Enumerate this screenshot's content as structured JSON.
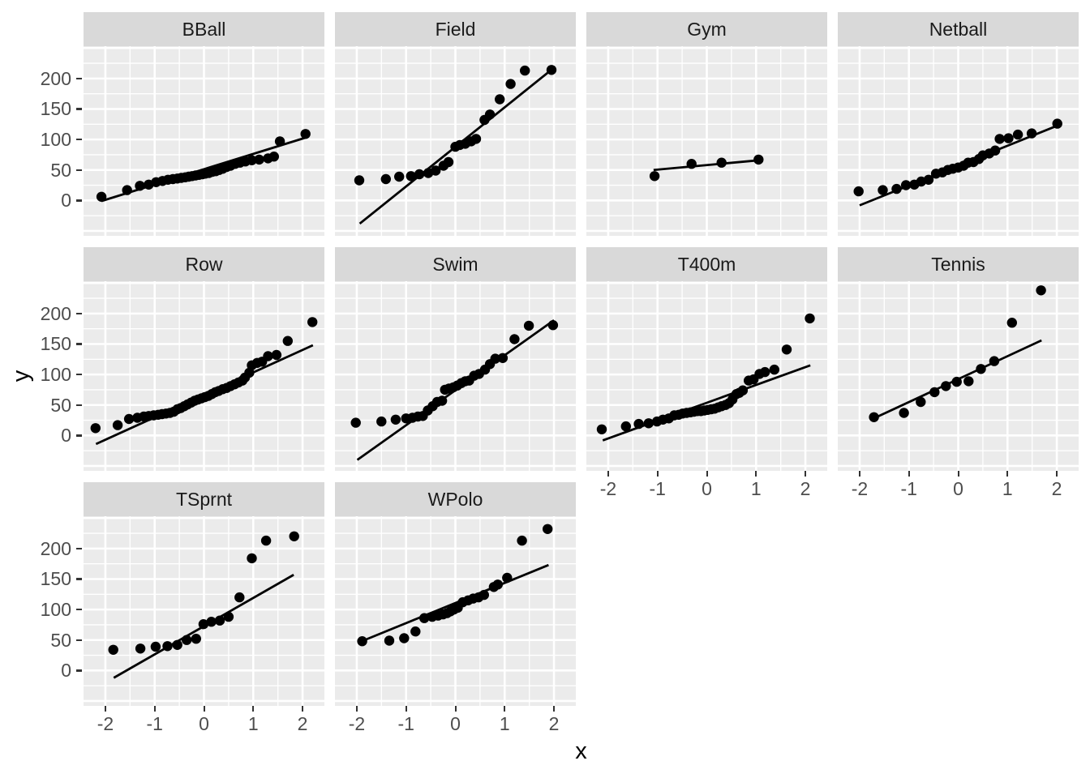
{
  "chart_data": {
    "type": "scatter",
    "description": "Faceted scatter plots (Q-Q style) of y vs x by sport, each with a fitted straight reference line",
    "xlabel": "x",
    "ylabel": "y",
    "x_ticks": [
      -2,
      -1,
      0,
      1,
      2
    ],
    "y_ticks": [
      0,
      50,
      100,
      150,
      200
    ],
    "x_domain": [
      -2.443,
      2.443
    ],
    "y_domain": [
      -58,
      253
    ],
    "x_major_grid": [
      -2,
      -1,
      0,
      1,
      2
    ],
    "x_minor_grid": [
      -1.5,
      -0.5,
      0.5,
      1.5
    ],
    "y_major_grid": [
      -50,
      0,
      50,
      100,
      150,
      200,
      250
    ],
    "y_minor_grid": [
      -25,
      25,
      75,
      125,
      175,
      225
    ],
    "grid": true,
    "legend": false,
    "colors": {
      "background": "#FFFFFF",
      "panel_bg": "#EBEBEB",
      "strip_bg": "#D9D9D9",
      "strip_text": "#1A1A1A",
      "axis_text": "#4D4D4D",
      "tick_mark": "#333333",
      "grid": "#FFFFFF",
      "point": "#000000",
      "fit_line": "#000000"
    },
    "facets": [
      {
        "label": "BBall",
        "bottom_axis": false,
        "line": [
          [
            -2.08,
            -1
          ],
          [
            2.06,
            103
          ]
        ],
        "points": [
          [
            -2.08,
            6
          ],
          [
            -1.56,
            17
          ],
          [
            -1.3,
            24
          ],
          [
            -1.12,
            26
          ],
          [
            -0.97,
            30
          ],
          [
            -0.84,
            32
          ],
          [
            -0.73,
            34
          ],
          [
            -0.63,
            35
          ],
          [
            -0.54,
            36
          ],
          [
            -0.46,
            37
          ],
          [
            -0.38,
            38
          ],
          [
            -0.31,
            39
          ],
          [
            -0.24,
            40
          ],
          [
            -0.17,
            41
          ],
          [
            -0.1,
            42
          ],
          [
            -0.03,
            43
          ],
          [
            0.03,
            44
          ],
          [
            0.1,
            45
          ],
          [
            0.17,
            47
          ],
          [
            0.24,
            48
          ],
          [
            0.31,
            50
          ],
          [
            0.38,
            52
          ],
          [
            0.46,
            55
          ],
          [
            0.54,
            57
          ],
          [
            0.63,
            60
          ],
          [
            0.73,
            62
          ],
          [
            0.84,
            64
          ],
          [
            0.97,
            66
          ],
          [
            1.12,
            67
          ],
          [
            1.3,
            69
          ],
          [
            1.42,
            72
          ],
          [
            1.54,
            97
          ],
          [
            2.06,
            109
          ]
        ]
      },
      {
        "label": "Field",
        "bottom_axis": false,
        "line": [
          [
            -1.94,
            -38
          ],
          [
            1.99,
            217
          ]
        ],
        "points": [
          [
            -1.95,
            33
          ],
          [
            -1.41,
            35
          ],
          [
            -1.14,
            39
          ],
          [
            -0.9,
            40
          ],
          [
            -0.73,
            43
          ],
          [
            -0.55,
            45
          ],
          [
            -0.4,
            49
          ],
          [
            -0.24,
            57
          ],
          [
            -0.14,
            63
          ],
          [
            0.0,
            88
          ],
          [
            0.09,
            91
          ],
          [
            0.2,
            93
          ],
          [
            0.32,
            97
          ],
          [
            0.42,
            101
          ],
          [
            0.59,
            132
          ],
          [
            0.7,
            141
          ],
          [
            0.9,
            166
          ],
          [
            1.12,
            191
          ],
          [
            1.41,
            213
          ],
          [
            1.95,
            214
          ]
        ]
      },
      {
        "label": "Gym",
        "bottom_axis": false,
        "line": [
          [
            -1.08,
            50
          ],
          [
            1.07,
            66
          ]
        ],
        "points": [
          [
            -1.06,
            40
          ],
          [
            -0.31,
            60
          ],
          [
            0.3,
            62
          ],
          [
            1.05,
            67
          ]
        ]
      },
      {
        "label": "Netball",
        "bottom_axis": false,
        "line": [
          [
            -2.0,
            -8
          ],
          [
            2.02,
            123
          ]
        ],
        "points": [
          [
            -2.02,
            15
          ],
          [
            -1.53,
            17
          ],
          [
            -1.25,
            19
          ],
          [
            -1.06,
            25
          ],
          [
            -0.89,
            26
          ],
          [
            -0.75,
            31
          ],
          [
            -0.6,
            34
          ],
          [
            -0.45,
            44
          ],
          [
            -0.32,
            46
          ],
          [
            -0.21,
            50
          ],
          [
            -0.11,
            52
          ],
          [
            0.0,
            54
          ],
          [
            0.11,
            57
          ],
          [
            0.2,
            62
          ],
          [
            0.31,
            63
          ],
          [
            0.42,
            68
          ],
          [
            0.5,
            74
          ],
          [
            0.63,
            77
          ],
          [
            0.75,
            82
          ],
          [
            0.84,
            101
          ],
          [
            1.02,
            102
          ],
          [
            1.21,
            108
          ],
          [
            1.49,
            110
          ],
          [
            2.01,
            126
          ]
        ]
      },
      {
        "label": "Row",
        "bottom_axis": false,
        "line": [
          [
            -2.19,
            -14
          ],
          [
            2.21,
            148
          ]
        ],
        "points": [
          [
            -2.2,
            12
          ],
          [
            -1.75,
            17
          ],
          [
            -1.52,
            27
          ],
          [
            -1.35,
            29
          ],
          [
            -1.22,
            31
          ],
          [
            -1.12,
            32
          ],
          [
            -1.02,
            33
          ],
          [
            -0.93,
            34
          ],
          [
            -0.85,
            35
          ],
          [
            -0.77,
            36
          ],
          [
            -0.69,
            37
          ],
          [
            -0.61,
            39
          ],
          [
            -0.54,
            43
          ],
          [
            -0.47,
            45
          ],
          [
            -0.4,
            48
          ],
          [
            -0.33,
            51
          ],
          [
            -0.26,
            54
          ],
          [
            -0.19,
            57
          ],
          [
            -0.12,
            59
          ],
          [
            -0.05,
            61
          ],
          [
            0.02,
            63
          ],
          [
            0.09,
            65
          ],
          [
            0.16,
            68
          ],
          [
            0.23,
            71
          ],
          [
            0.3,
            73
          ],
          [
            0.38,
            76
          ],
          [
            0.46,
            78
          ],
          [
            0.54,
            81
          ],
          [
            0.62,
            84
          ],
          [
            0.7,
            87
          ],
          [
            0.78,
            90
          ],
          [
            0.83,
            95
          ],
          [
            0.92,
            103
          ],
          [
            0.97,
            115
          ],
          [
            1.08,
            119
          ],
          [
            1.18,
            121
          ],
          [
            1.3,
            130
          ],
          [
            1.47,
            132
          ],
          [
            1.7,
            155
          ],
          [
            2.2,
            186
          ]
        ]
      },
      {
        "label": "Swim",
        "bottom_axis": false,
        "line": [
          [
            -1.99,
            -40
          ],
          [
            2.0,
            189
          ]
        ],
        "points": [
          [
            -2.02,
            21
          ],
          [
            -1.5,
            23
          ],
          [
            -1.21,
            26
          ],
          [
            -1.0,
            28
          ],
          [
            -0.87,
            29
          ],
          [
            -0.76,
            31
          ],
          [
            -0.66,
            32
          ],
          [
            -0.56,
            41
          ],
          [
            -0.46,
            48
          ],
          [
            -0.37,
            55
          ],
          [
            -0.27,
            57
          ],
          [
            -0.21,
            75
          ],
          [
            -0.13,
            77
          ],
          [
            -0.04,
            79
          ],
          [
            0.04,
            82
          ],
          [
            0.12,
            86
          ],
          [
            0.2,
            89
          ],
          [
            0.28,
            90
          ],
          [
            0.38,
            98
          ],
          [
            0.48,
            101
          ],
          [
            0.6,
            108
          ],
          [
            0.7,
            117
          ],
          [
            0.81,
            126
          ],
          [
            0.96,
            127
          ],
          [
            1.2,
            158
          ],
          [
            1.49,
            180
          ],
          [
            1.98,
            181
          ]
        ]
      },
      {
        "label": "T400m",
        "bottom_axis": true,
        "line": [
          [
            -2.11,
            -8
          ],
          [
            2.1,
            115
          ]
        ],
        "points": [
          [
            -2.13,
            10
          ],
          [
            -1.64,
            15
          ],
          [
            -1.38,
            19
          ],
          [
            -1.18,
            20
          ],
          [
            -1.01,
            23
          ],
          [
            -0.89,
            26
          ],
          [
            -0.77,
            28
          ],
          [
            -0.66,
            33
          ],
          [
            -0.57,
            34
          ],
          [
            -0.49,
            36
          ],
          [
            -0.41,
            37
          ],
          [
            -0.33,
            38
          ],
          [
            -0.26,
            39
          ],
          [
            -0.19,
            40
          ],
          [
            -0.12,
            40
          ],
          [
            -0.05,
            41
          ],
          [
            0.02,
            42
          ],
          [
            0.09,
            43
          ],
          [
            0.16,
            44
          ],
          [
            0.23,
            46
          ],
          [
            0.3,
            48
          ],
          [
            0.38,
            50
          ],
          [
            0.45,
            53
          ],
          [
            0.52,
            59
          ],
          [
            0.6,
            68
          ],
          [
            0.66,
            70
          ],
          [
            0.73,
            74
          ],
          [
            0.85,
            90
          ],
          [
            0.95,
            92
          ],
          [
            1.07,
            101
          ],
          [
            1.18,
            104
          ],
          [
            1.37,
            108
          ],
          [
            1.62,
            141
          ],
          [
            2.09,
            192
          ]
        ]
      },
      {
        "label": "Tennis",
        "bottom_axis": true,
        "line": [
          [
            -1.66,
            30
          ],
          [
            1.69,
            156
          ]
        ],
        "points": [
          [
            -1.71,
            30
          ],
          [
            -1.1,
            37
          ],
          [
            -0.76,
            55
          ],
          [
            -0.48,
            71
          ],
          [
            -0.25,
            81
          ],
          [
            -0.03,
            88
          ],
          [
            0.21,
            89
          ],
          [
            0.46,
            109
          ],
          [
            0.73,
            122
          ],
          [
            1.09,
            185
          ],
          [
            1.68,
            238
          ]
        ]
      },
      {
        "label": "TSprnt",
        "bottom_axis": true,
        "line": [
          [
            -1.83,
            -12
          ],
          [
            1.82,
            157
          ]
        ],
        "points": [
          [
            -1.84,
            34
          ],
          [
            -1.29,
            36
          ],
          [
            -0.98,
            39
          ],
          [
            -0.74,
            40
          ],
          [
            -0.54,
            42
          ],
          [
            -0.35,
            50
          ],
          [
            -0.16,
            52
          ],
          [
            -0.01,
            76
          ],
          [
            0.15,
            80
          ],
          [
            0.32,
            82
          ],
          [
            0.5,
            88
          ],
          [
            0.72,
            120
          ],
          [
            0.97,
            184
          ],
          [
            1.26,
            213
          ],
          [
            1.83,
            220
          ]
        ]
      },
      {
        "label": "WPolo",
        "bottom_axis": true,
        "line": [
          [
            -1.84,
            50
          ],
          [
            1.89,
            173
          ]
        ],
        "points": [
          [
            -1.89,
            48
          ],
          [
            -1.34,
            49
          ],
          [
            -1.04,
            53
          ],
          [
            -0.81,
            64
          ],
          [
            -0.63,
            86
          ],
          [
            -0.47,
            88
          ],
          [
            -0.35,
            90
          ],
          [
            -0.25,
            92
          ],
          [
            -0.17,
            94
          ],
          [
            -0.1,
            97
          ],
          [
            -0.03,
            100
          ],
          [
            0.05,
            103
          ],
          [
            0.15,
            112
          ],
          [
            0.26,
            115
          ],
          [
            0.36,
            118
          ],
          [
            0.47,
            120
          ],
          [
            0.58,
            124
          ],
          [
            0.78,
            137
          ],
          [
            0.86,
            141
          ],
          [
            1.05,
            152
          ],
          [
            1.35,
            213
          ],
          [
            1.87,
            232
          ]
        ]
      }
    ]
  }
}
